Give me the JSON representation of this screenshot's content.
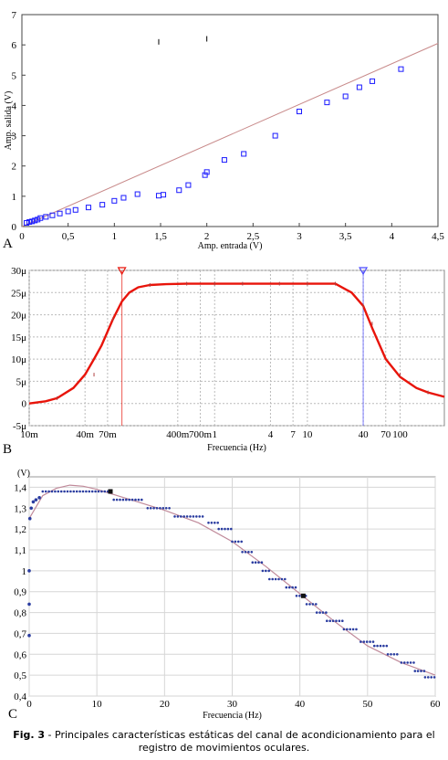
{
  "caption": {
    "label": "Fig. 3",
    "text": " - Principales características estáticas del canal de acondicionamiento para el registro de movimientos oculares."
  },
  "chart_data": [
    {
      "panel": "A",
      "type": "scatter",
      "xlabel": "Amp. entrada (V)",
      "ylabel": "Amp. salida (V)",
      "xlim": [
        0,
        4.5
      ],
      "ylim": [
        0,
        7
      ],
      "x_ticks": [
        "0",
        "0,5",
        "1",
        "1,5",
        "2",
        "2,5",
        "3",
        "3,5",
        "4",
        "4,5"
      ],
      "y_ticks": [
        "0",
        "1",
        "2",
        "3",
        "4",
        "5",
        "6",
        "7"
      ],
      "grid": false,
      "series": [
        {
          "kind": "points",
          "x": [
            0.05,
            0.08,
            0.11,
            0.14,
            0.17,
            0.2,
            0.26,
            0.33,
            0.41,
            0.5,
            0.58,
            0.72,
            0.87,
            1.0,
            1.1,
            1.25,
            1.48,
            1.53,
            1.7,
            1.8,
            1.98,
            2.0,
            2.19,
            2.4,
            2.74,
            3.0,
            3.3,
            3.5,
            3.65,
            3.79,
            4.1
          ],
          "y": [
            0.12,
            0.15,
            0.17,
            0.2,
            0.23,
            0.28,
            0.32,
            0.37,
            0.43,
            0.5,
            0.55,
            0.63,
            0.72,
            0.85,
            0.95,
            1.07,
            1.02,
            1.05,
            1.2,
            1.37,
            1.7,
            1.8,
            2.2,
            2.4,
            3.0,
            3.8,
            4.1,
            4.3,
            4.6,
            4.8,
            5.2
          ],
          "color": "#1a1aff"
        },
        {
          "kind": "fit",
          "x": [
            0,
            4.5
          ],
          "y": [
            0,
            6.05
          ],
          "color": "#c88a8a"
        },
        {
          "kind": "marks",
          "x": [
            1.48,
            2.0
          ],
          "y": [
            6.1,
            6.2
          ],
          "color": "#000000"
        }
      ]
    },
    {
      "panel": "B",
      "type": "line",
      "xlabel": "Frecuencia (Hz)",
      "ylabel": "",
      "x_scale": "log",
      "xlim": [
        0.01,
        300
      ],
      "ylim": [
        -5,
        30
      ],
      "x_ticks": [
        {
          "value": 0.01,
          "label": "10m"
        },
        {
          "value": 0.04,
          "label": "40m"
        },
        {
          "value": 0.07,
          "label": "70m"
        },
        {
          "value": 0.4,
          "label": "400m"
        },
        {
          "value": 0.7,
          "label": "700m"
        },
        {
          "value": 1,
          "label": "1"
        },
        {
          "value": 4,
          "label": "4"
        },
        {
          "value": 7,
          "label": "7"
        },
        {
          "value": 10,
          "label": "10"
        },
        {
          "value": 40,
          "label": "40"
        },
        {
          "value": 70,
          "label": "70"
        },
        {
          "value": 100,
          "label": "100"
        }
      ],
      "y_ticks": [
        "-5μ",
        "0",
        "5μ",
        "10μ",
        "15μ",
        "20μ",
        "25μ",
        "30μ"
      ],
      "y_tick_values": [
        -5,
        0,
        5,
        10,
        15,
        20,
        25,
        30
      ],
      "grid": true,
      "series": [
        {
          "kind": "curve",
          "color": "#e8140a",
          "x": [
            0.01,
            0.015,
            0.02,
            0.03,
            0.04,
            0.05,
            0.06,
            0.08,
            0.1,
            0.12,
            0.15,
            0.2,
            0.3,
            0.5,
            1,
            3,
            10,
            20,
            30,
            40,
            50,
            70,
            100,
            150,
            200,
            300
          ],
          "y": [
            0,
            0.5,
            1.2,
            3.5,
            6.5,
            10,
            13,
            19,
            23,
            25,
            26.2,
            26.7,
            26.9,
            27,
            27,
            27,
            27,
            27,
            25,
            22,
            17,
            10,
            6,
            3.5,
            2.5,
            1.5
          ]
        },
        {
          "kind": "markers",
          "color": "#b04040",
          "x": [
            0.02,
            0.05,
            0.08,
            0.2,
            0.5,
            1,
            2,
            5,
            10,
            20,
            40,
            50,
            100,
            200
          ],
          "y": [
            1.2,
            6.5,
            19,
            26.7,
            27,
            27,
            27,
            27,
            27,
            27,
            22,
            18,
            6.5,
            2.5
          ]
        }
      ],
      "cursors": [
        {
          "x": 0.1,
          "color": "#e8140a"
        },
        {
          "x": 40,
          "color": "#4c4cff"
        }
      ]
    },
    {
      "panel": "C",
      "type": "scatter",
      "xlabel": "Frecuencia (Hz)",
      "ylabel": "(V)",
      "xlim": [
        0,
        60
      ],
      "ylim": [
        0.4,
        1.45
      ],
      "x_ticks": [
        "0",
        "10",
        "20",
        "30",
        "40",
        "50",
        "60"
      ],
      "y_ticks": [
        "0,4",
        "0,5",
        "0,6",
        "0,7",
        "0,8",
        "0,9",
        "1",
        "1,1",
        "1,2",
        "1,3",
        "1,4"
      ],
      "grid": true,
      "series": [
        {
          "kind": "fit",
          "color": "#c08a9a",
          "x": [
            0,
            2,
            4,
            6,
            8,
            10,
            12,
            15,
            20,
            25,
            30,
            35,
            40,
            45,
            50,
            55,
            60
          ],
          "y": [
            1.25,
            1.36,
            1.395,
            1.41,
            1.405,
            1.39,
            1.37,
            1.34,
            1.29,
            1.23,
            1.14,
            1.02,
            0.89,
            0.76,
            0.64,
            0.56,
            0.5
          ]
        },
        {
          "kind": "steps",
          "color": "#2a3ca0",
          "segments": [
            {
              "x": [
                2,
                12
              ],
              "y": 1.38
            },
            {
              "x": [
                12.5,
                17
              ],
              "y": 1.34
            },
            {
              "x": [
                17.5,
                21
              ],
              "y": 1.3
            },
            {
              "x": [
                21.5,
                26
              ],
              "y": 1.26
            },
            {
              "x": [
                26.5,
                28
              ],
              "y": 1.23
            },
            {
              "x": [
                28,
                30
              ],
              "y": 1.2
            },
            {
              "x": [
                30,
                31.5
              ],
              "y": 1.14
            },
            {
              "x": [
                31.5,
                33
              ],
              "y": 1.09
            },
            {
              "x": [
                33,
                34.5
              ],
              "y": 1.04
            },
            {
              "x": [
                34.5,
                35.5
              ],
              "y": 1.0
            },
            {
              "x": [
                35.5,
                38
              ],
              "y": 0.96
            },
            {
              "x": [
                38,
                39.5
              ],
              "y": 0.92
            },
            {
              "x": [
                39.5,
                41
              ],
              "y": 0.88
            },
            {
              "x": [
                41,
                42.5
              ],
              "y": 0.84
            },
            {
              "x": [
                42.5,
                44
              ],
              "y": 0.8
            },
            {
              "x": [
                44,
                46.5
              ],
              "y": 0.76
            },
            {
              "x": [
                46.5,
                48.5
              ],
              "y": 0.72
            },
            {
              "x": [
                49,
                51
              ],
              "y": 0.66
            },
            {
              "x": [
                51,
                53
              ],
              "y": 0.64
            },
            {
              "x": [
                53,
                54.5
              ],
              "y": 0.6
            },
            {
              "x": [
                55,
                57
              ],
              "y": 0.56
            },
            {
              "x": [
                57,
                58.5
              ],
              "y": 0.52
            },
            {
              "x": [
                58.5,
                60
              ],
              "y": 0.49
            }
          ]
        },
        {
          "kind": "points",
          "color": "#2a3ca0",
          "x": [
            0,
            0,
            0,
            0.1,
            0.3,
            0.6,
            1.0,
            1.5
          ],
          "y": [
            0.69,
            0.84,
            1.0,
            1.25,
            1.3,
            1.33,
            1.34,
            1.35
          ]
        },
        {
          "kind": "highlight",
          "color": "#111111",
          "x": [
            12,
            40.5
          ],
          "y": [
            1.38,
            0.88
          ]
        }
      ]
    }
  ],
  "panels": {
    "A": {
      "letter": "A"
    },
    "B": {
      "letter": "B"
    },
    "C": {
      "letter": "C"
    }
  }
}
